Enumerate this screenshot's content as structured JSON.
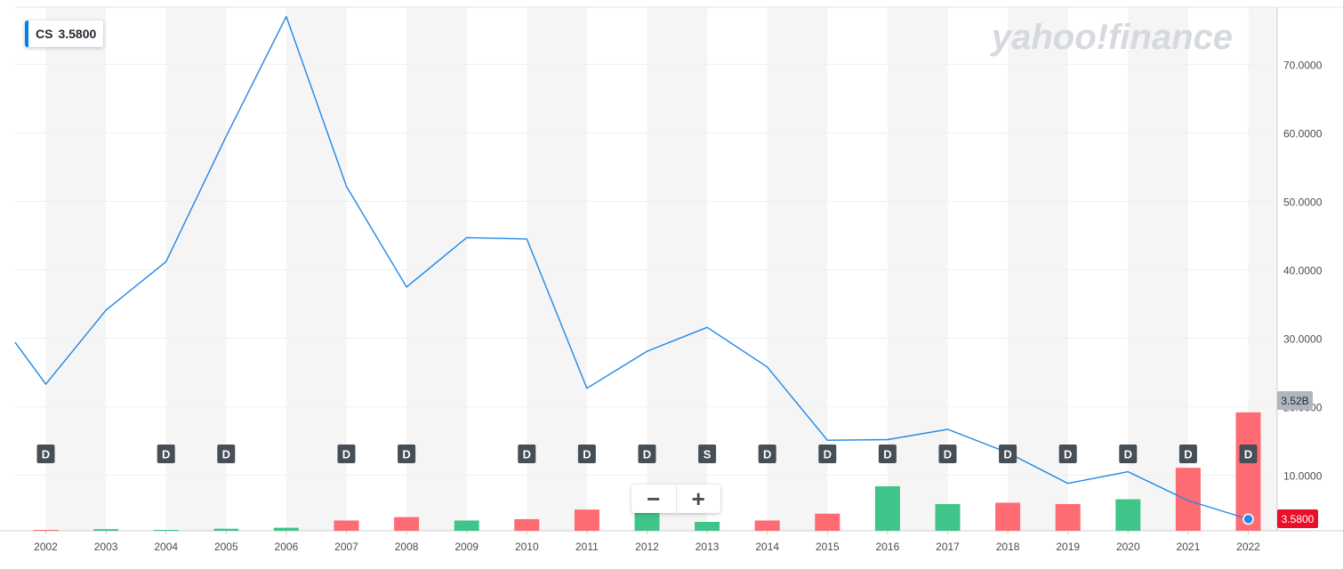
{
  "ticker": {
    "symbol": "CS",
    "value": "3.5800"
  },
  "watermark": "yahoo!finance",
  "zoom": {
    "out_label": "−",
    "in_label": "+"
  },
  "colors": {
    "line": "#1e88e5",
    "bar_up": "#3fc48a",
    "bar_down": "#ff6b72",
    "band": "#f5f5f5",
    "marker_bg": "#464e56",
    "price_tag": "#eb0f29",
    "volume_tag": "#b0b6bd"
  },
  "chart_data": {
    "type": "line",
    "x": [
      "2002",
      "2003",
      "2004",
      "2005",
      "2006",
      "2007",
      "2008",
      "2009",
      "2010",
      "2011",
      "2012",
      "2013",
      "2014",
      "2015",
      "2016",
      "2017",
      "2018",
      "2019",
      "2020",
      "2021",
      "2022"
    ],
    "series": [
      {
        "name": "CS",
        "values": [
          23.3,
          34.1,
          41.2,
          59.5,
          77.0,
          52.2,
          37.5,
          44.7,
          44.5,
          22.7,
          28.1,
          31.6,
          25.8,
          15.1,
          15.2,
          16.7,
          13.3,
          8.8,
          10.5,
          6.3,
          3.58
        ]
      }
    ],
    "start_value": 29.4,
    "volume": {
      "values": [
        0.03,
        0.12,
        0.05,
        0.15,
        0.22,
        0.75,
        1.0,
        0.75,
        0.85,
        1.55,
        1.35,
        0.65,
        0.75,
        1.25,
        3.25,
        1.95,
        2.05,
        1.95,
        2.3,
        4.6,
        8.65
      ],
      "direction": [
        "down",
        "up",
        "up",
        "up",
        "up",
        "down",
        "down",
        "up",
        "down",
        "down",
        "up",
        "up",
        "down",
        "down",
        "up",
        "up",
        "down",
        "down",
        "up",
        "down",
        "down"
      ],
      "label": "3.52B"
    },
    "events": [
      {
        "year": "2002",
        "label": "D"
      },
      {
        "year": "2004",
        "label": "D"
      },
      {
        "year": "2005",
        "label": "D"
      },
      {
        "year": "2007",
        "label": "D"
      },
      {
        "year": "2008",
        "label": "D"
      },
      {
        "year": "2010",
        "label": "D"
      },
      {
        "year": "2011",
        "label": "D"
      },
      {
        "year": "2012",
        "label": "D"
      },
      {
        "year": "2013",
        "label": "S"
      },
      {
        "year": "2014",
        "label": "D"
      },
      {
        "year": "2015",
        "label": "D"
      },
      {
        "year": "2016",
        "label": "D"
      },
      {
        "year": "2017",
        "label": "D"
      },
      {
        "year": "2018",
        "label": "D"
      },
      {
        "year": "2019",
        "label": "D"
      },
      {
        "year": "2020",
        "label": "D"
      },
      {
        "year": "2021",
        "label": "D"
      },
      {
        "year": "2022",
        "label": "D"
      }
    ],
    "y_ticks": [
      "10.0000",
      "20.0000",
      "30.0000",
      "40.0000",
      "50.0000",
      "60.0000",
      "70.0000"
    ],
    "ylim": [
      0,
      80
    ],
    "current_price_label": "3.5800",
    "grid": true
  }
}
